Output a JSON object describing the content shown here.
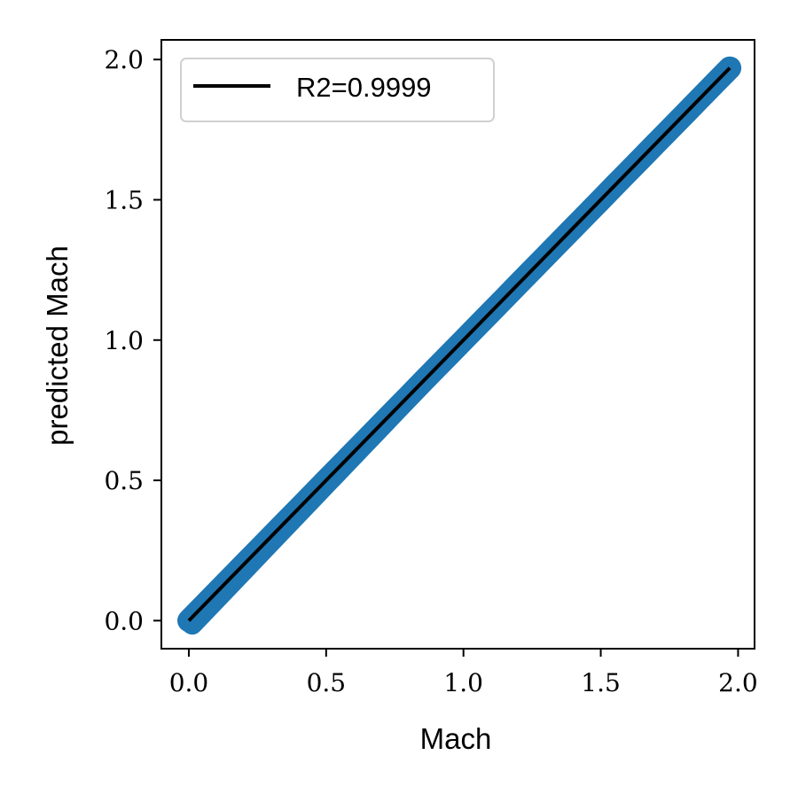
{
  "chart_data": {
    "type": "scatter",
    "title": "",
    "xlabel": "Mach",
    "ylabel": "predicted Mach",
    "xlim": [
      -0.1,
      2.06
    ],
    "ylim": [
      -0.1,
      2.07
    ],
    "xticks": [
      0.0,
      0.5,
      1.0,
      1.5,
      2.0
    ],
    "yticks": [
      0.0,
      0.5,
      1.0,
      1.5,
      2.0
    ],
    "xtick_labels": [
      "0.0",
      "0.5",
      "1.0",
      "1.5",
      "2.0"
    ],
    "ytick_labels": [
      "0.0",
      "0.5",
      "1.0",
      "1.5",
      "2.0"
    ],
    "grid": false,
    "legend": {
      "placement": "upper-left",
      "entries": [
        "R2=0.9999"
      ]
    },
    "series": [
      {
        "kind": "scatter",
        "color": "#1f77b4",
        "x": [
          0.0,
          0.05,
          0.1,
          0.15,
          0.2,
          0.25,
          0.3,
          0.35,
          0.4,
          0.45,
          0.5,
          0.55,
          0.6,
          0.65,
          0.7,
          0.75,
          0.8,
          0.85,
          0.9,
          0.95,
          1.0,
          1.05,
          1.1,
          1.15,
          1.2,
          1.25,
          1.3,
          1.35,
          1.4,
          1.45,
          1.5,
          1.55,
          1.6,
          1.65,
          1.7,
          1.75,
          1.8,
          1.85,
          1.9,
          1.95,
          1.97
        ],
        "y": [
          0.0,
          0.05,
          0.1,
          0.15,
          0.2,
          0.25,
          0.3,
          0.35,
          0.4,
          0.45,
          0.5,
          0.55,
          0.6,
          0.65,
          0.7,
          0.75,
          0.8,
          0.85,
          0.9,
          0.95,
          1.0,
          1.05,
          1.1,
          1.15,
          1.2,
          1.25,
          1.3,
          1.35,
          1.4,
          1.45,
          1.5,
          1.55,
          1.6,
          1.65,
          1.7,
          1.75,
          1.8,
          1.85,
          1.9,
          1.95,
          1.97
        ]
      },
      {
        "kind": "line",
        "name": "R2=0.9999",
        "color": "#000000",
        "x": [
          0.0,
          1.97
        ],
        "y": [
          0.0,
          1.97
        ]
      }
    ]
  }
}
